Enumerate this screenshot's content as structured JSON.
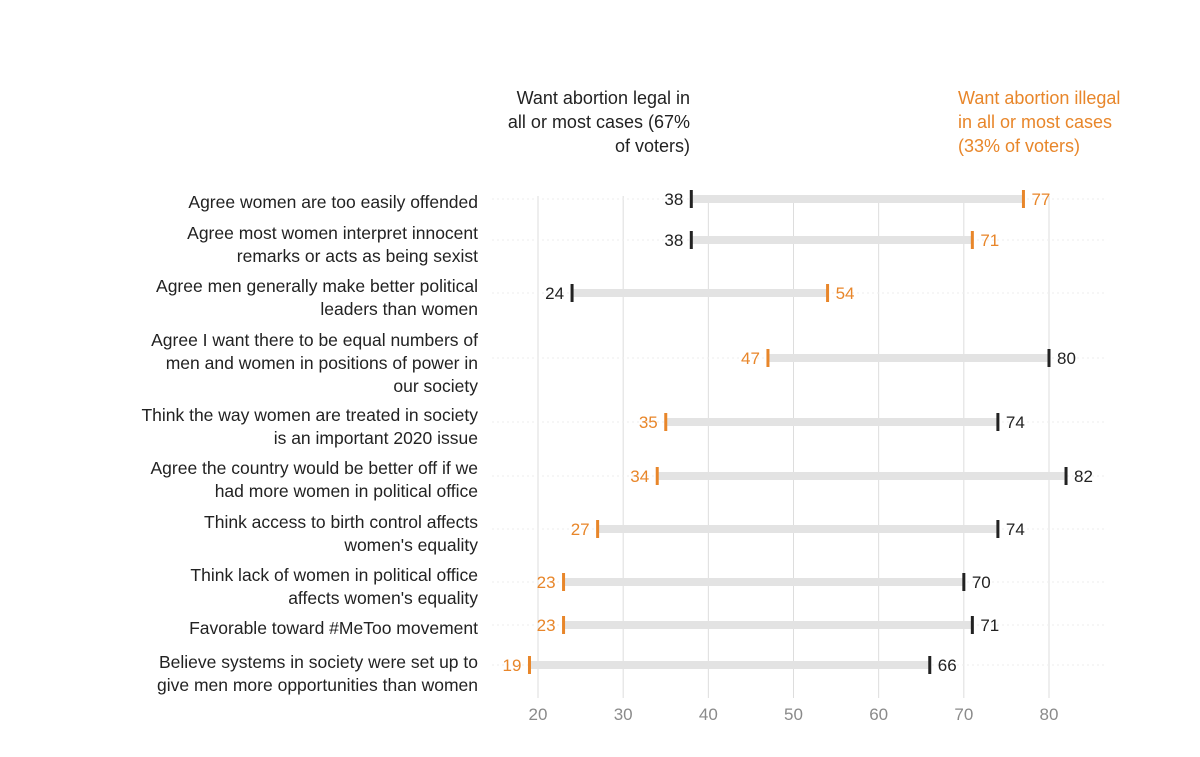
{
  "colors": {
    "legal": "#222222",
    "illegal": "#e8862a",
    "bar": "#e3e3e3",
    "grid": "#dddddd",
    "axis_text": "#8a8a8a"
  },
  "chart_data": {
    "type": "dumbbell",
    "title": "",
    "xlabel": "",
    "ylabel": "",
    "xlim": [
      18,
      87
    ],
    "x_ticks": [
      20,
      30,
      40,
      50,
      60,
      70,
      80
    ],
    "grid": true,
    "series": [
      {
        "name": "Want abortion legal in all or most cases (67% of voters)",
        "color": "#222222"
      },
      {
        "name": "Want abortion illegal in all or most cases (33% of voters)",
        "color": "#e8862a"
      }
    ],
    "rows": [
      {
        "label": "Agree women are too easily offended",
        "legal": 38,
        "illegal": 77
      },
      {
        "label": "Agree most women interpret innocent remarks or acts as being sexist",
        "legal": 38,
        "illegal": 71
      },
      {
        "label": "Agree men generally make better political leaders than women",
        "legal": 24,
        "illegal": 54
      },
      {
        "label": "Agree I want there to be equal numbers of men and women in positions of power in our society",
        "legal": 80,
        "illegal": 47
      },
      {
        "label": "Think the way women are treated in society is an important 2020 issue",
        "legal": 74,
        "illegal": 35
      },
      {
        "label": "Agree the country would be better off if we had more women in political office",
        "legal": 82,
        "illegal": 34
      },
      {
        "label": "Think access to birth control affects women's equality",
        "legal": 74,
        "illegal": 27
      },
      {
        "label": "Think lack of women in political office affects women's equality",
        "legal": 70,
        "illegal": 23
      },
      {
        "label": "Favorable toward #MeToo movement",
        "legal": 71,
        "illegal": 23
      },
      {
        "label": "Believe systems in society were set up to give men more opportunities than women",
        "legal": 66,
        "illegal": 19
      }
    ]
  }
}
